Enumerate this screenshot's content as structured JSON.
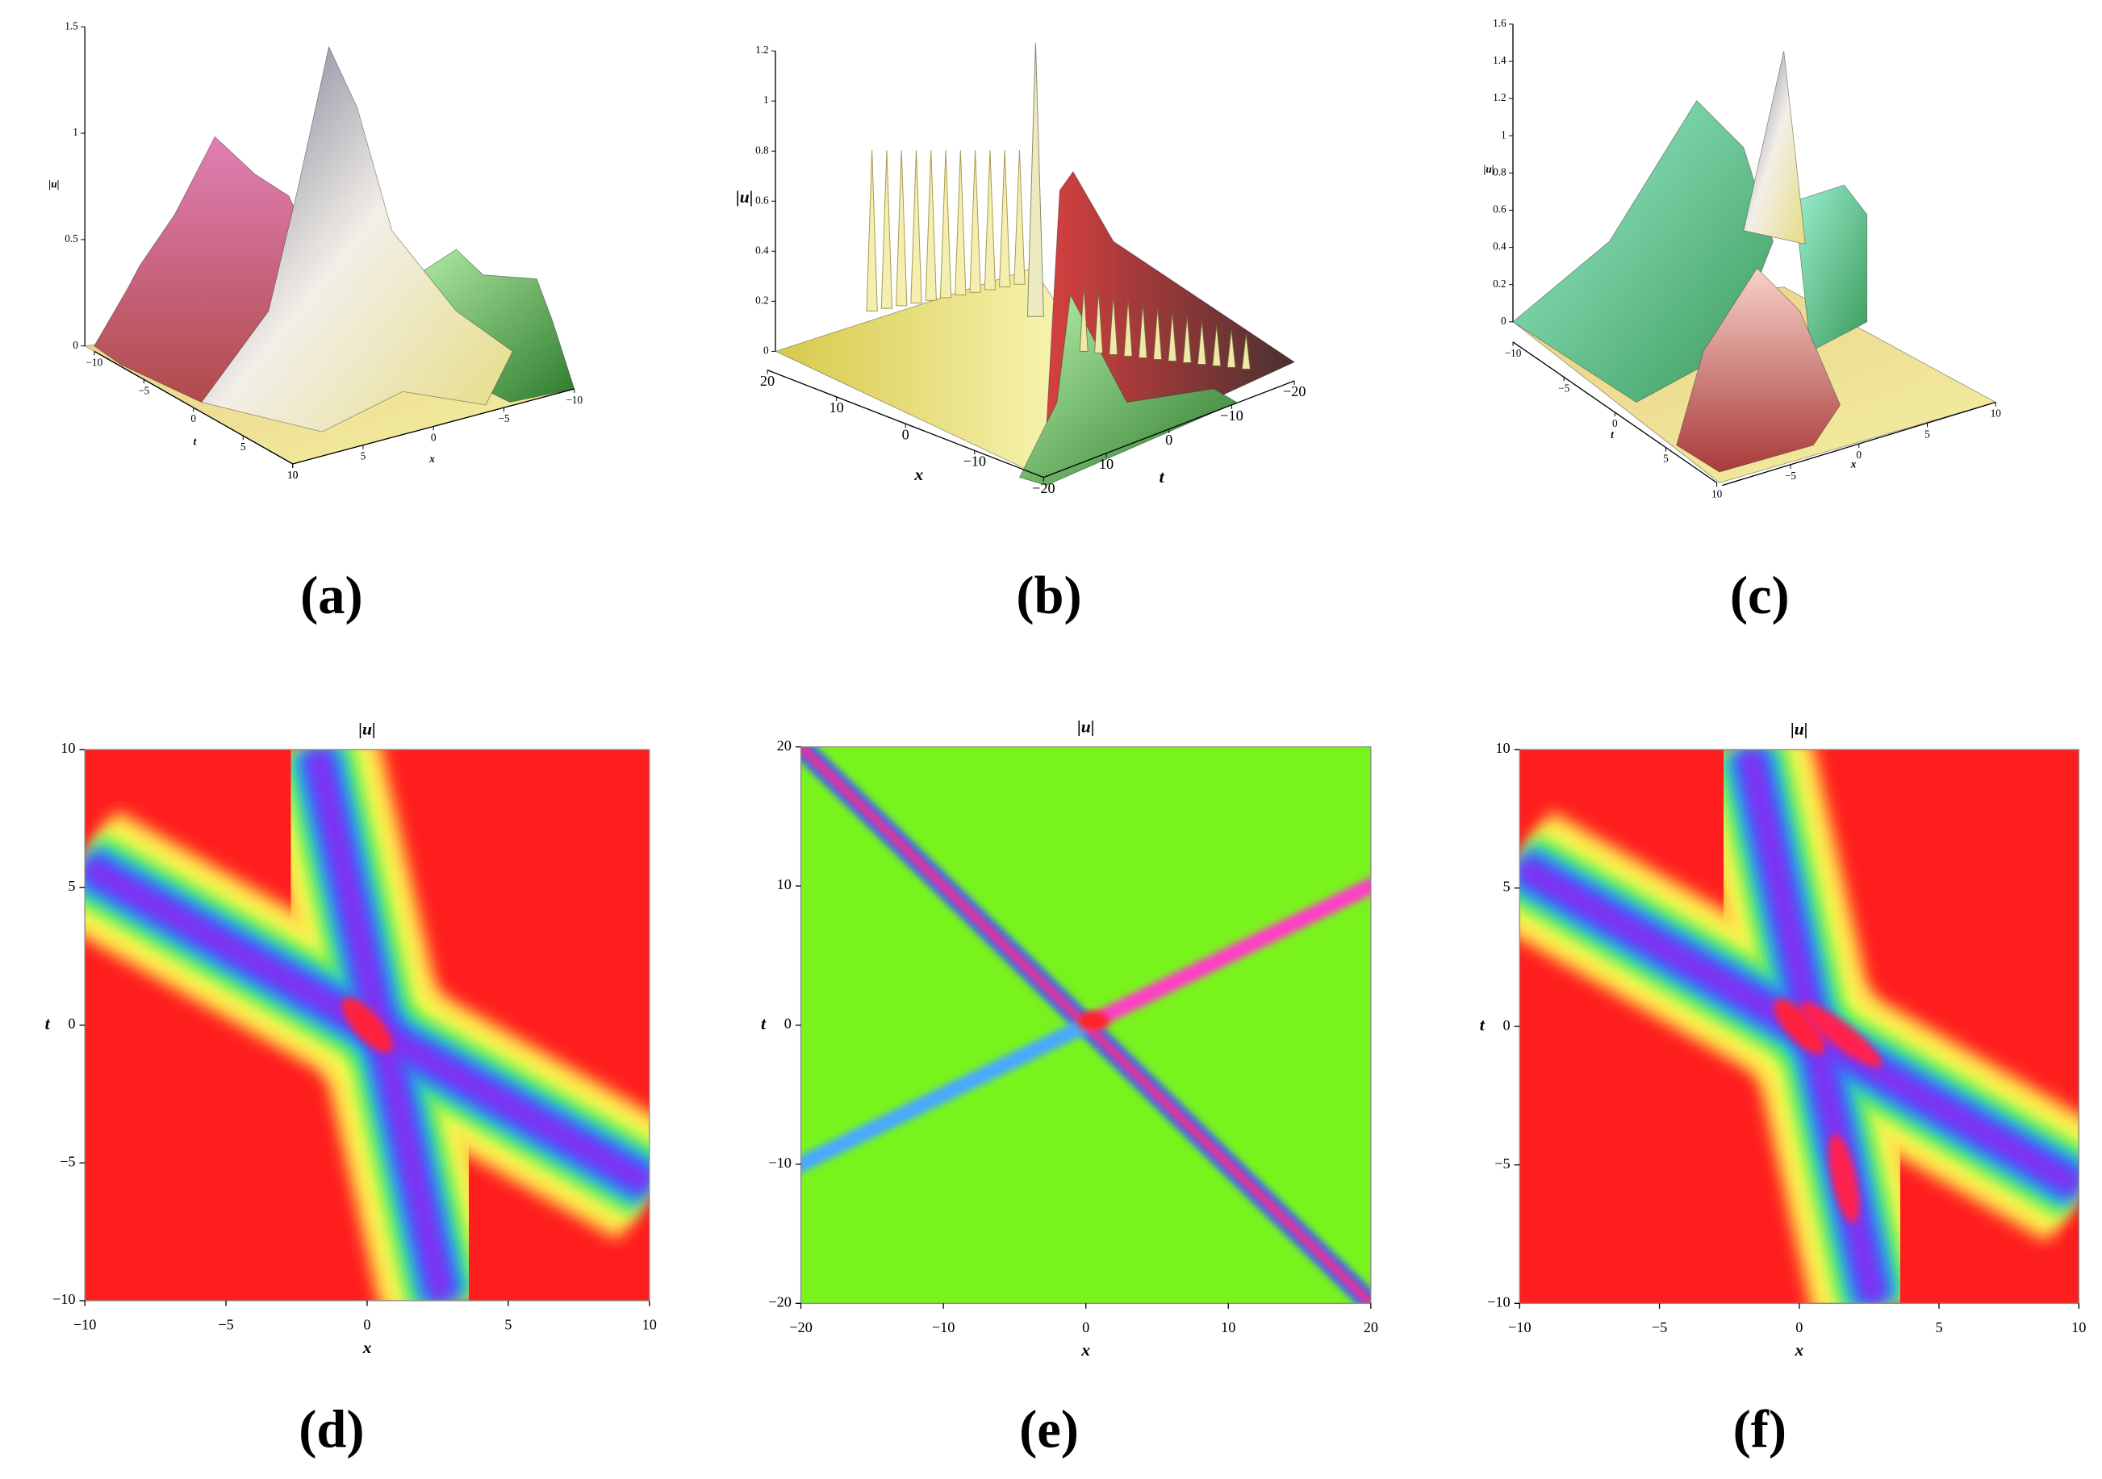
{
  "chart_data": [
    {
      "type": "surface3d",
      "panel_label": "(a)",
      "xlabel": "x",
      "ylabel": "t",
      "zlabel": "|u|",
      "xlim": [
        -10,
        10
      ],
      "ylim": [
        -10,
        10
      ],
      "zlim": [
        0,
        1.5
      ],
      "xticks": [
        {
          "value": -10,
          "label": "−10"
        },
        {
          "value": -5,
          "label": "−5"
        },
        0,
        5,
        10
      ],
      "yticks": [
        {
          "value": -10,
          "label": "−10"
        },
        {
          "value": -5,
          "label": "−5"
        },
        0,
        5,
        10
      ],
      "zticks": [
        0,
        0.5,
        1,
        1.5
      ]
    },
    {
      "type": "surface3d",
      "panel_label": "(b)",
      "xlabel": "x",
      "ylabel": "t",
      "zlabel": "|u|",
      "xlim": [
        -20,
        20
      ],
      "ylim": [
        -20,
        20
      ],
      "zlim": [
        0,
        1.2
      ],
      "xticks": [
        {
          "value": -20,
          "label": "−20"
        },
        {
          "value": -10,
          "label": "−10"
        },
        0,
        10,
        20
      ],
      "yticks": [
        {
          "value": -20,
          "label": "−20"
        },
        {
          "value": -10,
          "label": "−10"
        },
        0,
        10
      ],
      "zticks": [
        0,
        0.2,
        0.4,
        0.6,
        0.8,
        1,
        1.2
      ]
    },
    {
      "type": "surface3d",
      "panel_label": "(c)",
      "xlabel": "x",
      "ylabel": "t",
      "zlabel": "|u|",
      "xlim": [
        -10,
        10
      ],
      "ylim": [
        -10,
        10
      ],
      "zlim": [
        0,
        1.6
      ],
      "xticks": [
        {
          "value": -5,
          "label": "−5"
        },
        0,
        5,
        10
      ],
      "yticks": [
        {
          "value": -10,
          "label": "−10"
        },
        {
          "value": -5,
          "label": "−5"
        },
        0,
        5,
        10
      ],
      "zticks": [
        0,
        0.2,
        0.4,
        0.6,
        0.8,
        1,
        1.2,
        1.4,
        1.6
      ]
    },
    {
      "type": "density",
      "panel_label": "(d)",
      "title": "|u|",
      "xlabel": "x",
      "ylabel": "t",
      "xlim": [
        -10,
        10
      ],
      "ylim": [
        -10,
        10
      ],
      "xticks": [
        {
          "value": -10,
          "label": "−10"
        },
        {
          "value": -5,
          "label": "−5"
        },
        0,
        5,
        10
      ],
      "yticks": [
        {
          "value": -10,
          "label": "−10"
        },
        {
          "value": -5,
          "label": "−5"
        },
        0,
        5,
        10
      ]
    },
    {
      "type": "density",
      "panel_label": "(e)",
      "title": "|u|",
      "xlabel": "x",
      "ylabel": "t",
      "xlim": [
        -20,
        20
      ],
      "ylim": [
        -20,
        20
      ],
      "xticks": [
        {
          "value": -20,
          "label": "−20"
        },
        {
          "value": -10,
          "label": "−10"
        },
        0,
        10,
        20
      ],
      "yticks": [
        {
          "value": -20,
          "label": "−20"
        },
        {
          "value": -10,
          "label": "−10"
        },
        0,
        10,
        20
      ]
    },
    {
      "type": "density",
      "panel_label": "(f)",
      "title": "|u|",
      "xlabel": "x",
      "ylabel": "t",
      "xlim": [
        -10,
        10
      ],
      "ylim": [
        -10,
        10
      ],
      "xticks": [
        {
          "value": -10,
          "label": "−10"
        },
        {
          "value": -5,
          "label": "−5"
        },
        0,
        5,
        10
      ],
      "yticks": [
        {
          "value": -10,
          "label": "−10"
        },
        {
          "value": -5,
          "label": "−5"
        },
        0,
        5,
        10
      ]
    }
  ]
}
